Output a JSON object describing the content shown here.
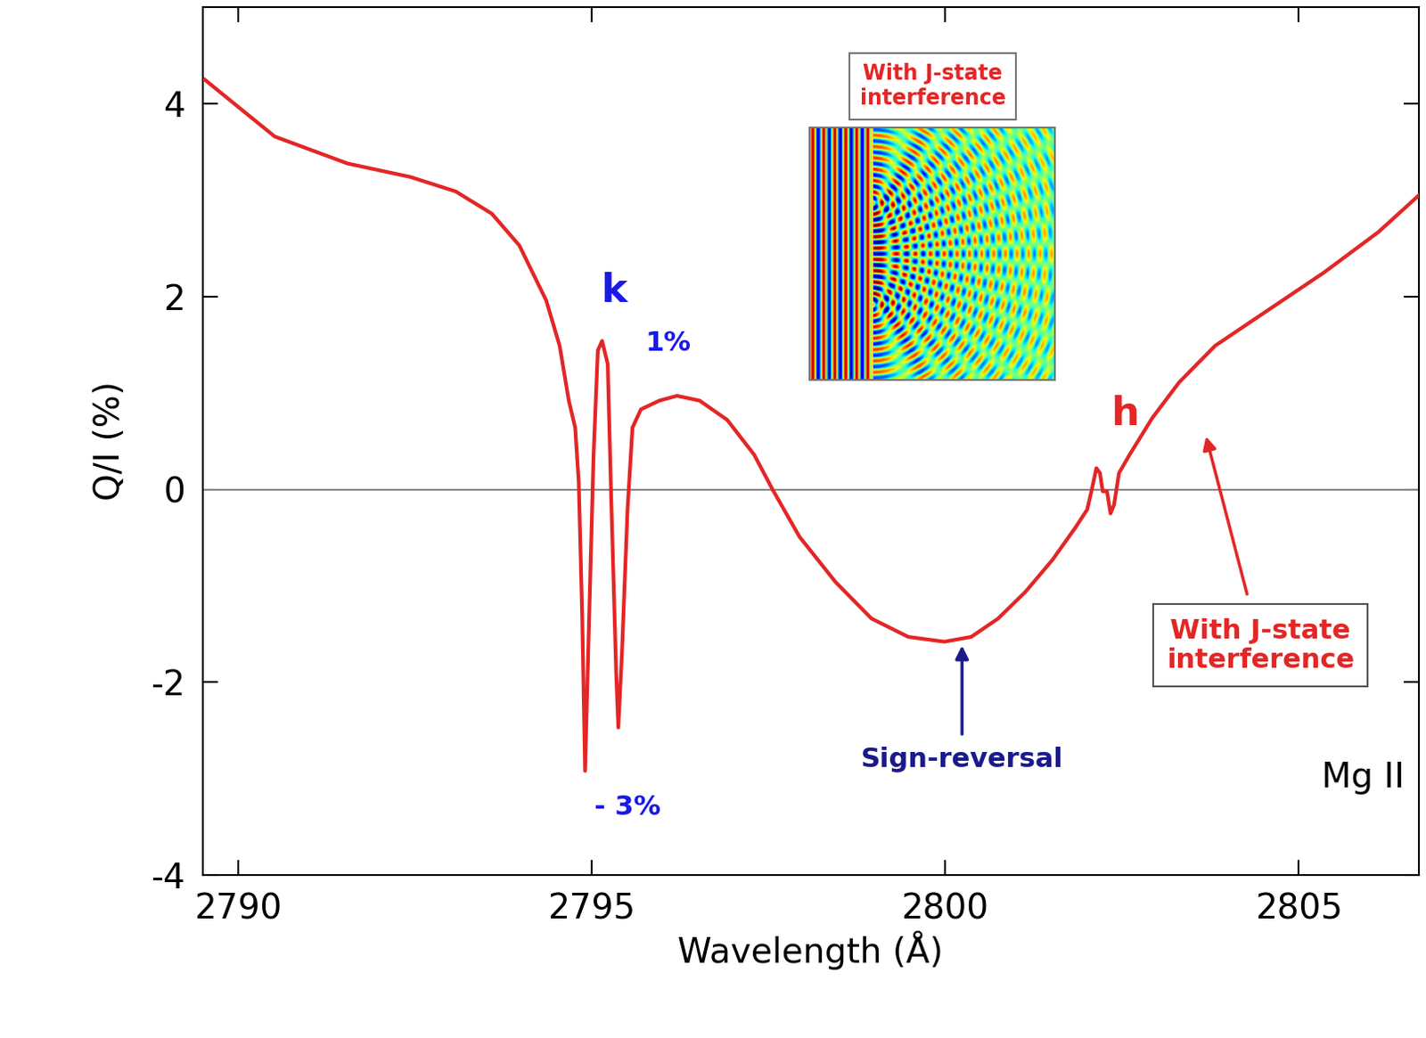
{
  "chart_data": {
    "type": "line",
    "xlabel": "Wavelength (Å)",
    "ylabel": "Q/I (%)",
    "x": [
      2789.53,
      2790.52,
      2791.55,
      2792.44,
      2793.08,
      2793.59,
      2793.98,
      2794.36,
      2794.55,
      2794.68,
      2794.77,
      2794.82,
      2794.87,
      2794.91,
      2794.96,
      2795.03,
      2795.09,
      2795.15,
      2795.23,
      2795.28,
      2795.35,
      2795.38,
      2795.43,
      2795.51,
      2795.58,
      2795.7,
      2795.96,
      2796.21,
      2796.53,
      2796.92,
      2797.3,
      2797.56,
      2797.94,
      2798.45,
      2798.96,
      2799.48,
      2799.99,
      2800.37,
      2800.75,
      2801.14,
      2801.52,
      2801.84,
      2802.01,
      2802.07,
      2802.14,
      2802.19,
      2802.23,
      2802.29,
      2802.34,
      2802.39,
      2802.46,
      2802.61,
      2802.93,
      2803.31,
      2803.82,
      2804.59,
      2805.36,
      2806.13,
      2806.7
    ],
    "values": [
      4.25,
      3.66,
      3.38,
      3.24,
      3.09,
      2.86,
      2.53,
      1.96,
      1.49,
      0.92,
      0.64,
      0.08,
      -1.34,
      -2.92,
      -1.53,
      0.36,
      1.44,
      1.54,
      1.3,
      -0.11,
      -1.91,
      -2.47,
      -1.72,
      -0.21,
      0.64,
      0.83,
      0.92,
      0.97,
      0.92,
      0.72,
      0.36,
      0.0,
      -0.49,
      -0.96,
      -1.34,
      -1.53,
      -1.58,
      -1.53,
      -1.34,
      -1.06,
      -0.73,
      -0.4,
      -0.21,
      -0.02,
      0.22,
      0.17,
      -0.02,
      -0.02,
      -0.25,
      -0.16,
      0.17,
      0.36,
      0.74,
      1.11,
      1.49,
      1.87,
      2.25,
      2.67,
      3.05
    ],
    "color": "#e32626",
    "xlim": [
      2789.5,
      2806.7
    ],
    "ylim": [
      -4,
      5
    ],
    "xticks": [
      2790,
      2795,
      2800,
      2805
    ],
    "yticks": [
      -4,
      -2,
      0,
      2,
      4
    ],
    "annotations": [
      {
        "text": "k",
        "x": 2795.32,
        "y": 2.06,
        "color": "#1a1ae6"
      },
      {
        "text": "1%",
        "x": 2796.09,
        "y": 1.52,
        "color": "#1a1ae6"
      },
      {
        "text": "- 3%",
        "x": 2795.51,
        "y": -3.3,
        "color": "#1a1ae6"
      },
      {
        "text": "h",
        "x": 2802.55,
        "y": 0.78,
        "color": "#e32626"
      },
      {
        "text": "Sign-reversal",
        "x": 2800.24,
        "y": -2.8,
        "color": "#1a1a8c",
        "arrow_to": [
          2800.24,
          -1.62
        ]
      },
      {
        "text": "Mg II",
        "x": 2806.5,
        "y": -2.99,
        "color": "#000000"
      },
      {
        "text": "With J-state\ninterference",
        "x": 2804.46,
        "y": -1.62,
        "color": "#e32626",
        "arrow_to": [
          2803.69,
          0.55
        ]
      }
    ],
    "inset_title": "With J-state\ninterference"
  }
}
